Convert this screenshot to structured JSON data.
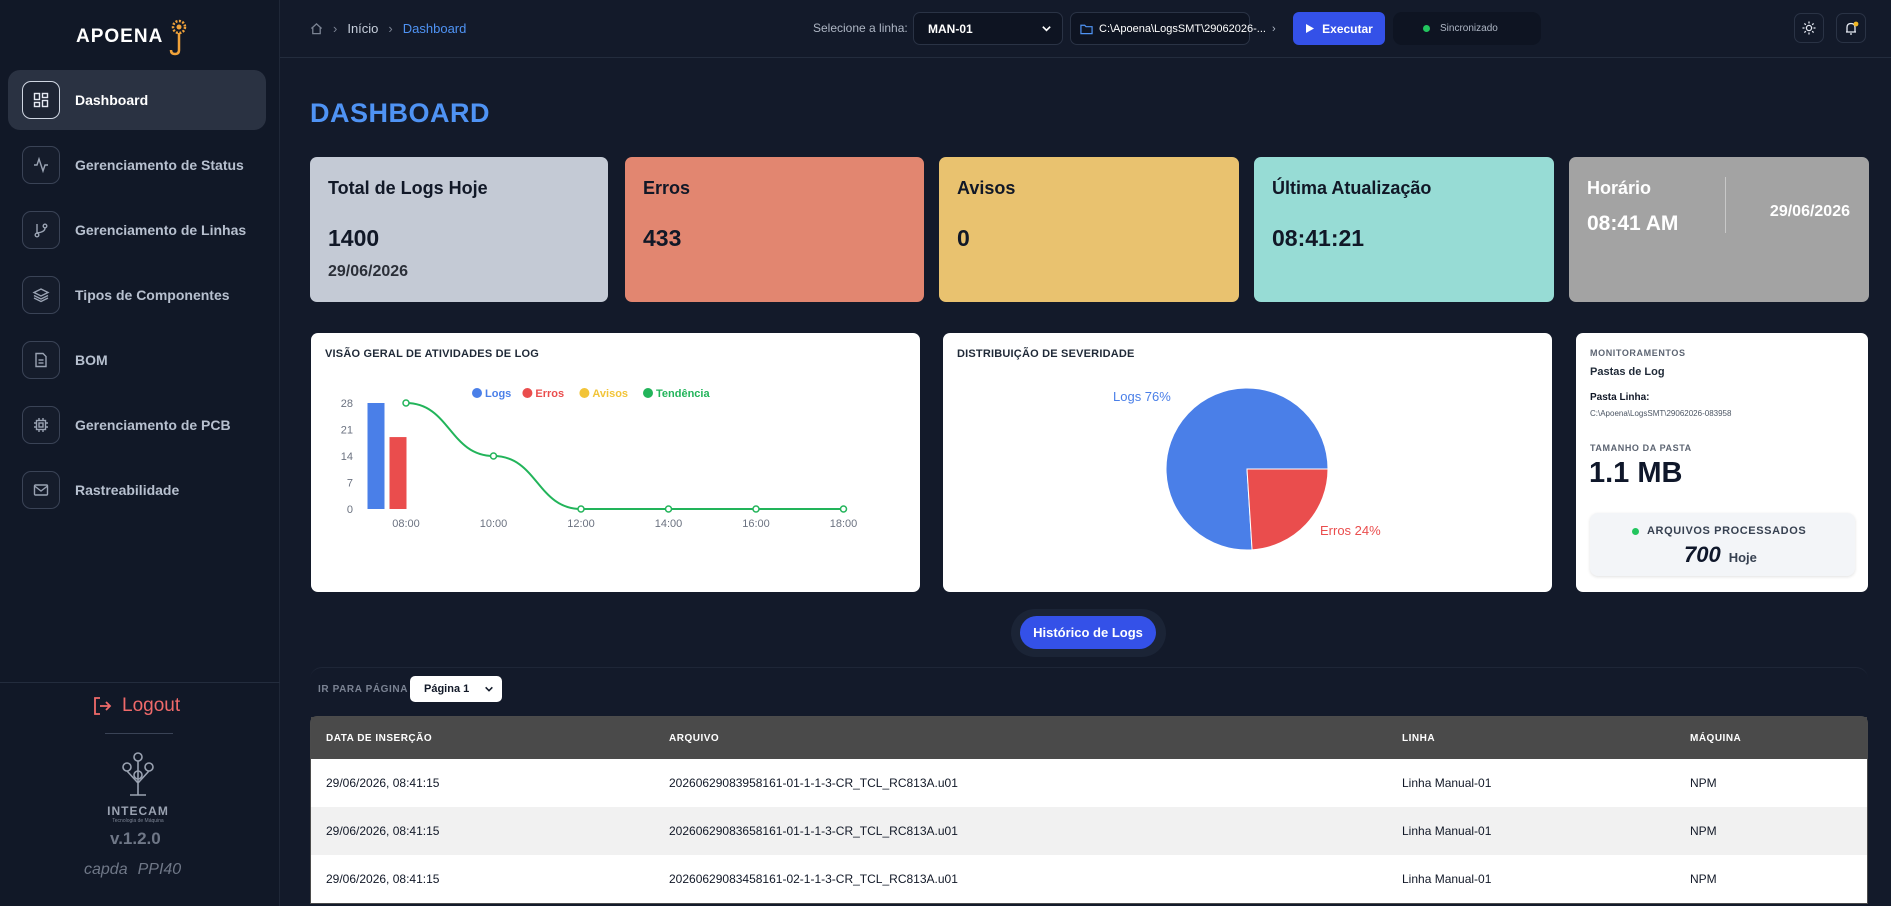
{
  "app": {
    "brand": "APOENA",
    "version": "v.1.2.0",
    "logout": "Logout",
    "partner_logo": "INTECAM",
    "partner_logo_sub": "Tecnologia de Máquina",
    "partners": [
      "capda",
      "PPI40"
    ]
  },
  "sidebar": {
    "items": [
      {
        "label": "Dashboard",
        "icon": "dashboard-icon",
        "active": true
      },
      {
        "label": "Gerenciamento de Status",
        "icon": "activity-icon"
      },
      {
        "label": "Gerenciamento de Linhas",
        "icon": "git-branch-icon"
      },
      {
        "label": "Tipos de Componentes",
        "icon": "layers-icon"
      },
      {
        "label": "BOM",
        "icon": "file-list-icon"
      },
      {
        "label": "Gerenciamento de PCB",
        "icon": "chip-icon"
      },
      {
        "label": "Rastreabilidade",
        "icon": "mail-icon"
      }
    ]
  },
  "header": {
    "breadcrumb": {
      "home": "home-icon",
      "inicio": "Início",
      "current": "Dashboard"
    },
    "line_label": "Selecione a linha:",
    "line_value": "MAN-01",
    "path": "C:\\Apoena\\LogsSMT\\29062026-...",
    "execute": "Executar",
    "sync_status": "Sincronizado",
    "colors": {
      "accent": "#3451e8",
      "status": "#22c55e"
    }
  },
  "main": {
    "title": "DASHBOARD",
    "cards": [
      {
        "title": "Total de Logs Hoje",
        "value": "1400",
        "sub": "29/06/2026",
        "color": "#c4cad5"
      },
      {
        "title": "Erros",
        "value": "433",
        "color": "#e28670"
      },
      {
        "title": "Avisos",
        "value": "0",
        "color": "#e9c26f"
      },
      {
        "title": "Última Atualização",
        "value": "08:41:21",
        "color": "#97dcd5"
      },
      {
        "title": "Horário",
        "value": "08:41 AM",
        "date": "29/06/2026",
        "color": "#a3a3a3"
      }
    ],
    "log_chart_title": "VISÃO GERAL DE ATIVIDADES DE LOG",
    "severity_title": "DISTRIBUIÇÃO DE SEVERIDADE",
    "monitor": {
      "heading": "MONITORAMENTOS",
      "subheading": "Pastas de Log",
      "path_label": "Pasta Linha:",
      "path_value": "C:\\Apoena\\LogsSMT\\29062026-083958",
      "size_label": "TAMANHO DA PASTA",
      "size_value": "1.1 MB",
      "files_label": "ARQUIVOS PROCESSADOS",
      "files_value": "700",
      "files_suffix": "Hoje"
    },
    "history_button": "Histórico de Logs",
    "goto_label": "IR PARA PÁGINA",
    "goto_value": "Página 1",
    "table": {
      "headers": [
        "DATA DE INSERÇÃO",
        "ARQUIVO",
        "LINHA",
        "MÁQUINA"
      ],
      "rows": [
        [
          "29/06/2026, 08:41:15",
          "20260629083958161-01-1-1-3-CR_TCL_RC813A.u01",
          "Linha Manual-01",
          "NPM"
        ],
        [
          "29/06/2026, 08:41:15",
          "20260629083658161-01-1-1-3-CR_TCL_RC813A.u01",
          "Linha Manual-01",
          "NPM"
        ],
        [
          "29/06/2026, 08:41:15",
          "20260629083458161-02-1-1-3-CR_TCL_RC813A.u01",
          "Linha Manual-01",
          "NPM"
        ]
      ]
    }
  },
  "chart_data": [
    {
      "type": "bar",
      "title": "VISÃO GERAL DE ATIVIDADES DE LOG",
      "categories": [
        "08:00",
        "10:00",
        "12:00",
        "14:00",
        "16:00",
        "18:00"
      ],
      "yticks": [
        0,
        7,
        14,
        21,
        28
      ],
      "ylim": [
        0,
        28
      ],
      "legend_placement": "top",
      "series": [
        {
          "name": "Logs",
          "type": "bar",
          "color": "#4a7fe8",
          "values": [
            28,
            0,
            0,
            0,
            0,
            0
          ]
        },
        {
          "name": "Erros",
          "type": "bar",
          "color": "#ea4d4d",
          "values": [
            19,
            0,
            0,
            0,
            0,
            0
          ]
        },
        {
          "name": "Avisos",
          "type": "bar",
          "color": "#f2c438",
          "values": [
            0,
            0,
            0,
            0,
            0,
            0
          ]
        },
        {
          "name": "Tendência",
          "type": "line",
          "color": "#22b45a",
          "values": [
            28,
            14,
            0,
            0,
            0,
            0
          ]
        }
      ]
    },
    {
      "type": "pie",
      "title": "DISTRIBUIÇÃO DE SEVERIDADE",
      "slices": [
        {
          "label": "Logs 76%",
          "value": 76,
          "color": "#4a7fe8"
        },
        {
          "label": "Erros 24%",
          "value": 24,
          "color": "#ea4d4d"
        }
      ]
    }
  ]
}
